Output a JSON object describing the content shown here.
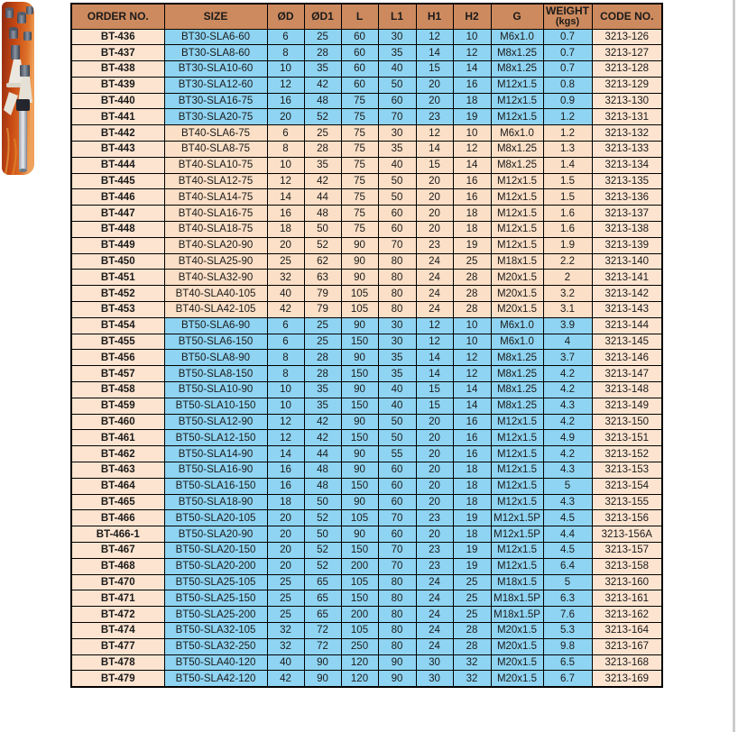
{
  "photo": {
    "description": "BT collet chuck tool holders on orange background"
  },
  "table": {
    "headers": [
      "ORDER NO.",
      "SIZE",
      "ØD",
      "ØD1",
      "L",
      "L1",
      "H1",
      "H2",
      "G",
      "WEIGHT",
      "CODE NO."
    ],
    "weight_unit": "(kgs)",
    "rows": [
      {
        "order": "BT-436",
        "size": "BT30-SLA6-60",
        "d": "6",
        "d1": "25",
        "l": "60",
        "l1": "30",
        "h1": "12",
        "h2": "10",
        "g": "M6x1.0",
        "weight": "0.7",
        "code": "3213-126",
        "theme": "blue"
      },
      {
        "order": "BT-437",
        "size": "BT30-SLA8-60",
        "d": "8",
        "d1": "28",
        "l": "60",
        "l1": "35",
        "h1": "14",
        "h2": "12",
        "g": "M8x1.25",
        "weight": "0.7",
        "code": "3213-127",
        "theme": "blue"
      },
      {
        "order": "BT-438",
        "size": "BT30-SLA10-60",
        "d": "10",
        "d1": "35",
        "l": "60",
        "l1": "40",
        "h1": "15",
        "h2": "14",
        "g": "M8x1.25",
        "weight": "0.7",
        "code": "3213-128",
        "theme": "blue"
      },
      {
        "order": "BT-439",
        "size": "BT30-SLA12-60",
        "d": "12",
        "d1": "42",
        "l": "60",
        "l1": "50",
        "h1": "20",
        "h2": "16",
        "g": "M12x1.5",
        "weight": "0.8",
        "code": "3213-129",
        "theme": "blue"
      },
      {
        "order": "BT-440",
        "size": "BT30-SLA16-75",
        "d": "16",
        "d1": "48",
        "l": "75",
        "l1": "60",
        "h1": "20",
        "h2": "18",
        "g": "M12x1.5",
        "weight": "0.9",
        "code": "3213-130",
        "theme": "blue"
      },
      {
        "order": "BT-441",
        "size": "BT30-SLA20-75",
        "d": "20",
        "d1": "52",
        "l": "75",
        "l1": "70",
        "h1": "23",
        "h2": "19",
        "g": "M12x1.5",
        "weight": "1.2",
        "code": "3213-131",
        "theme": "blue"
      },
      {
        "order": "BT-442",
        "size": "BT40-SLA6-75",
        "d": "6",
        "d1": "25",
        "l": "75",
        "l1": "30",
        "h1": "12",
        "h2": "10",
        "g": "M6x1.0",
        "weight": "1.2",
        "code": "3213-132",
        "theme": "peach"
      },
      {
        "order": "BT-443",
        "size": "BT40-SLA8-75",
        "d": "8",
        "d1": "28",
        "l": "75",
        "l1": "35",
        "h1": "14",
        "h2": "12",
        "g": "M8x1.25",
        "weight": "1.3",
        "code": "3213-133",
        "theme": "peach"
      },
      {
        "order": "BT-444",
        "size": "BT40-SLA10-75",
        "d": "10",
        "d1": "35",
        "l": "75",
        "l1": "40",
        "h1": "15",
        "h2": "14",
        "g": "M8x1.25",
        "weight": "1.4",
        "code": "3213-134",
        "theme": "peach"
      },
      {
        "order": "BT-445",
        "size": "BT40-SLA12-75",
        "d": "12",
        "d1": "42",
        "l": "75",
        "l1": "50",
        "h1": "20",
        "h2": "16",
        "g": "M12x1.5",
        "weight": "1.5",
        "code": "3213-135",
        "theme": "peach"
      },
      {
        "order": "BT-446",
        "size": "BT40-SLA14-75",
        "d": "14",
        "d1": "44",
        "l": "75",
        "l1": "50",
        "h1": "20",
        "h2": "16",
        "g": "M12x1.5",
        "weight": "1.5",
        "code": "3213-136",
        "theme": "peach"
      },
      {
        "order": "BT-447",
        "size": "BT40-SLA16-75",
        "d": "16",
        "d1": "48",
        "l": "75",
        "l1": "60",
        "h1": "20",
        "h2": "18",
        "g": "M12x1.5",
        "weight": "1.6",
        "code": "3213-137",
        "theme": "peach"
      },
      {
        "order": "BT-448",
        "size": "BT40-SLA18-75",
        "d": "18",
        "d1": "50",
        "l": "75",
        "l1": "60",
        "h1": "20",
        "h2": "18",
        "g": "M12x1.5",
        "weight": "1.6",
        "code": "3213-138",
        "theme": "peach"
      },
      {
        "order": "BT-449",
        "size": "BT40-SLA20-90",
        "d": "20",
        "d1": "52",
        "l": "90",
        "l1": "70",
        "h1": "23",
        "h2": "19",
        "g": "M12x1.5",
        "weight": "1.9",
        "code": "3213-139",
        "theme": "peach"
      },
      {
        "order": "BT-450",
        "size": "BT40-SLA25-90",
        "d": "25",
        "d1": "62",
        "l": "90",
        "l1": "80",
        "h1": "24",
        "h2": "25",
        "g": "M18x1.5",
        "weight": "2.2",
        "code": "3213-140",
        "theme": "peach"
      },
      {
        "order": "BT-451",
        "size": "BT40-SLA32-90",
        "d": "32",
        "d1": "63",
        "l": "90",
        "l1": "80",
        "h1": "24",
        "h2": "28",
        "g": "M20x1.5",
        "weight": "2",
        "code": "3213-141",
        "theme": "peach"
      },
      {
        "order": "BT-452",
        "size": "BT40-SLA40-105",
        "d": "40",
        "d1": "79",
        "l": "105",
        "l1": "80",
        "h1": "24",
        "h2": "28",
        "g": "M20x1.5",
        "weight": "3.2",
        "code": "3213-142",
        "theme": "peach"
      },
      {
        "order": "BT-453",
        "size": "BT40-SLA42-105",
        "d": "42",
        "d1": "79",
        "l": "105",
        "l1": "80",
        "h1": "24",
        "h2": "28",
        "g": "M20x1.5",
        "weight": "3.1",
        "code": "3213-143",
        "theme": "peach"
      },
      {
        "order": "BT-454",
        "size": "BT50-SLA6-90",
        "d": "6",
        "d1": "25",
        "l": "90",
        "l1": "30",
        "h1": "12",
        "h2": "10",
        "g": "M6x1.0",
        "weight": "3.9",
        "code": "3213-144",
        "theme": "blue"
      },
      {
        "order": "BT-455",
        "size": "BT50-SLA6-150",
        "d": "6",
        "d1": "25",
        "l": "150",
        "l1": "30",
        "h1": "12",
        "h2": "10",
        "g": "M6x1.0",
        "weight": "4",
        "code": "3213-145",
        "theme": "blue"
      },
      {
        "order": "BT-456",
        "size": "BT50-SLA8-90",
        "d": "8",
        "d1": "28",
        "l": "90",
        "l1": "35",
        "h1": "14",
        "h2": "12",
        "g": "M8x1.25",
        "weight": "3.7",
        "code": "3213-146",
        "theme": "blue"
      },
      {
        "order": "BT-457",
        "size": "BT50-SLA8-150",
        "d": "8",
        "d1": "28",
        "l": "150",
        "l1": "35",
        "h1": "14",
        "h2": "12",
        "g": "M8x1.25",
        "weight": "4.2",
        "code": "3213-147",
        "theme": "blue"
      },
      {
        "order": "BT-458",
        "size": "BT50-SLA10-90",
        "d": "10",
        "d1": "35",
        "l": "90",
        "l1": "40",
        "h1": "15",
        "h2": "14",
        "g": "M8x1.25",
        "weight": "4.2",
        "code": "3213-148",
        "theme": "blue"
      },
      {
        "order": "BT-459",
        "size": "BT50-SLA10-150",
        "d": "10",
        "d1": "35",
        "l": "150",
        "l1": "40",
        "h1": "15",
        "h2": "14",
        "g": "M8x1.25",
        "weight": "4.3",
        "code": "3213-149",
        "theme": "blue"
      },
      {
        "order": "BT-460",
        "size": "BT50-SLA12-90",
        "d": "12",
        "d1": "42",
        "l": "90",
        "l1": "50",
        "h1": "20",
        "h2": "16",
        "g": "M12x1.5",
        "weight": "4.2",
        "code": "3213-150",
        "theme": "blue"
      },
      {
        "order": "BT-461",
        "size": "BT50-SLA12-150",
        "d": "12",
        "d1": "42",
        "l": "150",
        "l1": "50",
        "h1": "20",
        "h2": "16",
        "g": "M12x1.5",
        "weight": "4.9",
        "code": "3213-151",
        "theme": "blue"
      },
      {
        "order": "BT-462",
        "size": "BT50-SLA14-90",
        "d": "14",
        "d1": "44",
        "l": "90",
        "l1": "55",
        "h1": "20",
        "h2": "16",
        "g": "M12x1.5",
        "weight": "4.2",
        "code": "3213-152",
        "theme": "blue"
      },
      {
        "order": "BT-463",
        "size": "BT50-SLA16-90",
        "d": "16",
        "d1": "48",
        "l": "90",
        "l1": "60",
        "h1": "20",
        "h2": "18",
        "g": "M12x1.5",
        "weight": "4.3",
        "code": "3213-153",
        "theme": "blue"
      },
      {
        "order": "BT-464",
        "size": "BT50-SLA16-150",
        "d": "16",
        "d1": "48",
        "l": "150",
        "l1": "60",
        "h1": "20",
        "h2": "18",
        "g": "M12x1.5",
        "weight": "5",
        "code": "3213-154",
        "theme": "blue"
      },
      {
        "order": "BT-465",
        "size": "BT50-SLA18-90",
        "d": "18",
        "d1": "50",
        "l": "90",
        "l1": "60",
        "h1": "20",
        "h2": "18",
        "g": "M12x1.5",
        "weight": "4.3",
        "code": "3213-155",
        "theme": "blue"
      },
      {
        "order": "BT-466",
        "size": "BT50-SLA20-105",
        "d": "20",
        "d1": "52",
        "l": "105",
        "l1": "70",
        "h1": "23",
        "h2": "19",
        "g": "M12x1.5P",
        "weight": "4.5",
        "code": "3213-156",
        "theme": "blue"
      },
      {
        "order": "BT-466-1",
        "size": "BT50-SLA20-90",
        "d": "20",
        "d1": "50",
        "l": "90",
        "l1": "60",
        "h1": "20",
        "h2": "18",
        "g": "M12x1.5P",
        "weight": "4.4",
        "code": "3213-156A",
        "theme": "blue"
      },
      {
        "order": "BT-467",
        "size": "BT50-SLA20-150",
        "d": "20",
        "d1": "52",
        "l": "150",
        "l1": "70",
        "h1": "23",
        "h2": "19",
        "g": "M12x1.5",
        "weight": "4.5",
        "code": "3213-157",
        "theme": "blue"
      },
      {
        "order": "BT-468",
        "size": "BT50-SLA20-200",
        "d": "20",
        "d1": "52",
        "l": "200",
        "l1": "70",
        "h1": "23",
        "h2": "19",
        "g": "M12x1.5",
        "weight": "6.4",
        "code": "3213-158",
        "theme": "blue"
      },
      {
        "order": "BT-470",
        "size": "BT50-SLA25-105",
        "d": "25",
        "d1": "65",
        "l": "105",
        "l1": "80",
        "h1": "24",
        "h2": "25",
        "g": "M18x1.5",
        "weight": "5",
        "code": "3213-160",
        "theme": "blue"
      },
      {
        "order": "BT-471",
        "size": "BT50-SLA25-150",
        "d": "25",
        "d1": "65",
        "l": "150",
        "l1": "80",
        "h1": "24",
        "h2": "25",
        "g": "M18x1.5P",
        "weight": "6.3",
        "code": "3213-161",
        "theme": "blue"
      },
      {
        "order": "BT-472",
        "size": "BT50-SLA25-200",
        "d": "25",
        "d1": "65",
        "l": "200",
        "l1": "80",
        "h1": "24",
        "h2": "25",
        "g": "M18x1.5P",
        "weight": "7.6",
        "code": "3213-162",
        "theme": "blue"
      },
      {
        "order": "BT-474",
        "size": "BT50-SLA32-105",
        "d": "32",
        "d1": "72",
        "l": "105",
        "l1": "80",
        "h1": "24",
        "h2": "28",
        "g": "M20x1.5",
        "weight": "5.3",
        "code": "3213-164",
        "theme": "blue"
      },
      {
        "order": "BT-477",
        "size": "BT50-SLA32-250",
        "d": "32",
        "d1": "72",
        "l": "250",
        "l1": "80",
        "h1": "24",
        "h2": "28",
        "g": "M20x1.5",
        "weight": "9.8",
        "code": "3213-167",
        "theme": "blue"
      },
      {
        "order": "BT-478",
        "size": "BT50-SLA40-120",
        "d": "40",
        "d1": "90",
        "l": "120",
        "l1": "90",
        "h1": "30",
        "h2": "32",
        "g": "M20x1.5",
        "weight": "6.5",
        "code": "3213-168",
        "theme": "blue"
      },
      {
        "order": "BT-479",
        "size": "BT50-SLA42-120",
        "d": "42",
        "d1": "90",
        "l": "120",
        "l1": "90",
        "h1": "30",
        "h2": "32",
        "g": "M20x1.5",
        "weight": "6.7",
        "code": "3213-169",
        "theme": "blue"
      }
    ]
  },
  "colors": {
    "header_bg": "#cd8a5e",
    "peach_cell": "#fce4d0",
    "peach_mid_cell": "#fbdfc6",
    "blue_cell": "#8fd4f2",
    "border": "#000000",
    "page_edge_line": "#cccccc",
    "photo_orange": "#d2551c"
  }
}
